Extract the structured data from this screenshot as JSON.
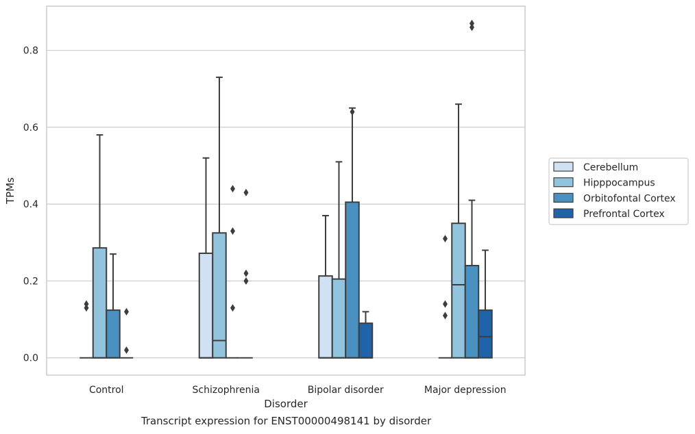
{
  "caption": "Transcript expression for ENST00000498141 by disorder",
  "chart_data": {
    "type": "boxplot",
    "xlabel": "Disorder",
    "ylabel": "TPMs",
    "ylim": [
      -0.045,
      0.915
    ],
    "yticks": [
      0.0,
      0.2,
      0.4,
      0.6,
      0.8
    ],
    "ytick_labels": [
      "0.0",
      "0.2",
      "0.4",
      "0.6",
      "0.8"
    ],
    "grid": "horizontal",
    "legend_position": "right",
    "categories": [
      "Control",
      "Schizophrenia",
      "Bipolar disorder",
      "Major depression"
    ],
    "series": [
      {
        "name": "Cerebellum",
        "color": "#cfe1f2",
        "boxes": [
          {
            "category": "Control",
            "whisker_low": 0,
            "q1": 0,
            "median": 0,
            "q3": 0,
            "whisker_high": 0,
            "outliers": [
              0.13,
              0.14
            ]
          },
          {
            "category": "Schizophrenia",
            "whisker_low": 0,
            "q1": 0,
            "median": 0,
            "q3": 0.272,
            "whisker_high": 0.52,
            "outliers": []
          },
          {
            "category": "Bipolar disorder",
            "whisker_low": 0,
            "q1": 0,
            "median": 0,
            "q3": 0.213,
            "whisker_high": 0.37,
            "outliers": []
          },
          {
            "category": "Major depression",
            "whisker_low": 0,
            "q1": 0,
            "median": 0,
            "q3": 0,
            "whisker_high": 0,
            "outliers": [
              0.11,
              0.14,
              0.31
            ]
          }
        ]
      },
      {
        "name": "Hipppocampus",
        "color": "#93c4de",
        "boxes": [
          {
            "category": "Control",
            "whisker_low": 0,
            "q1": 0,
            "median": 0,
            "q3": 0.286,
            "whisker_high": 0.58,
            "outliers": []
          },
          {
            "category": "Schizophrenia",
            "whisker_low": 0,
            "q1": 0,
            "median": 0.045,
            "q3": 0.325,
            "whisker_high": 0.73,
            "outliers": []
          },
          {
            "category": "Bipolar disorder",
            "whisker_low": 0,
            "q1": 0,
            "median": 0,
            "q3": 0.205,
            "whisker_high": 0.51,
            "outliers": []
          },
          {
            "category": "Major depression",
            "whisker_low": 0,
            "q1": 0,
            "median": 0.19,
            "q3": 0.35,
            "whisker_high": 0.66,
            "outliers": []
          }
        ]
      },
      {
        "name": "Orbitofontal Cortex",
        "color": "#4a91c2",
        "boxes": [
          {
            "category": "Control",
            "whisker_low": 0,
            "q1": 0,
            "median": 0,
            "q3": 0.124,
            "whisker_high": 0.27,
            "outliers": []
          },
          {
            "category": "Schizophrenia",
            "whisker_low": 0,
            "q1": 0,
            "median": 0,
            "q3": 0,
            "whisker_high": 0,
            "outliers": [
              0.13,
              0.33,
              0.44
            ]
          },
          {
            "category": "Bipolar disorder",
            "whisker_low": 0,
            "q1": 0,
            "median": 0,
            "q3": 0.405,
            "whisker_high": 0.65,
            "outliers": [
              0.64
            ]
          },
          {
            "category": "Major depression",
            "whisker_low": 0,
            "q1": 0,
            "median": 0,
            "q3": 0.24,
            "whisker_high": 0.41,
            "outliers": [
              0.86,
              0.87
            ]
          }
        ]
      },
      {
        "name": "Prefrontal Cortex",
        "color": "#1f64a8",
        "boxes": [
          {
            "category": "Control",
            "whisker_low": 0,
            "q1": 0,
            "median": 0,
            "q3": 0,
            "whisker_high": 0,
            "outliers": [
              0.02,
              0.12
            ]
          },
          {
            "category": "Schizophrenia",
            "whisker_low": 0,
            "q1": 0,
            "median": 0,
            "q3": 0,
            "whisker_high": 0,
            "outliers": [
              0.2,
              0.22,
              0.43
            ]
          },
          {
            "category": "Bipolar disorder",
            "whisker_low": 0,
            "q1": 0,
            "median": 0,
            "q3": 0.09,
            "whisker_high": 0.12,
            "outliers": []
          },
          {
            "category": "Major depression",
            "whisker_low": 0,
            "q1": 0,
            "median": 0.055,
            "q3": 0.124,
            "whisker_high": 0.28,
            "outliers": []
          }
        ]
      }
    ]
  }
}
